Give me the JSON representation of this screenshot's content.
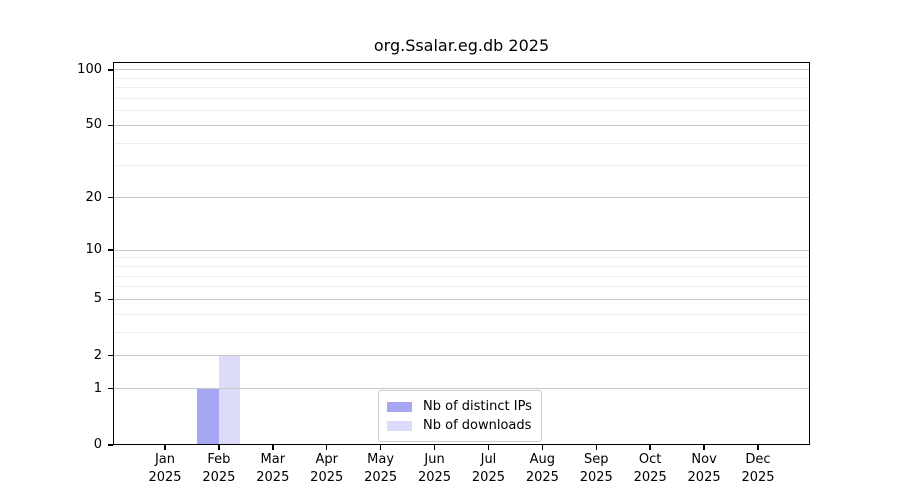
{
  "chart_data": {
    "type": "bar",
    "title": "org.Ssalar.eg.db 2025",
    "categories": [
      "Jan",
      "Feb",
      "Mar",
      "Apr",
      "May",
      "Jun",
      "Jul",
      "Aug",
      "Sep",
      "Oct",
      "Nov",
      "Dec"
    ],
    "x_year": "2025",
    "series": [
      {
        "name": "Nb of distinct IPs",
        "color": "#a6a6f2",
        "values": [
          0,
          1,
          0,
          0,
          0,
          0,
          0,
          0,
          0,
          0,
          0,
          0
        ]
      },
      {
        "name": "Nb of downloads",
        "color": "#dcdcf8",
        "values": [
          0,
          2,
          0,
          0,
          0,
          0,
          0,
          0,
          0,
          0,
          0,
          0
        ]
      }
    ],
    "yscale": "log1p",
    "ylim": [
      0,
      110
    ],
    "y_major_ticks": [
      0,
      1,
      2,
      5,
      10,
      20,
      50,
      100
    ],
    "y_minor_ticks": [
      3,
      4,
      6,
      7,
      8,
      9,
      30,
      40,
      60,
      70,
      80,
      90
    ],
    "grid": "horizontal, drawn above bars",
    "legend": {
      "position": "lower center",
      "labels": [
        "Nb of distinct IPs",
        "Nb of downloads"
      ]
    },
    "colors": {
      "bar_distinct_ips": "#a6a6f2",
      "bar_downloads": "#dcdcf8",
      "grid_major": "#c8c8c8",
      "grid_minor": "#ededed",
      "axis": "#000000",
      "legend_border": "#cccccc",
      "background": "#ffffff",
      "text": "#000000"
    }
  }
}
